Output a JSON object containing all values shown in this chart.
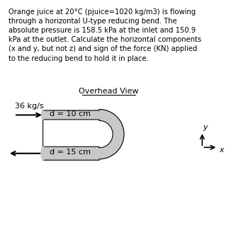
{
  "title_text": "Overhead View",
  "problem_text": "Orange juice at 20°C (pjuice=1020 kg/m3) is flowing\nthrough a horizontal U-type reducing bend. The\nabsolute pressure is 158.5 kPa at the inlet and 150.9\nkPa at the outlet. Calculate the horizontal components\n(x and y, but not z) and sign of the force (KN) applied\nto the reducing bend to hold it in place.",
  "flow_label": "36 kg/s",
  "inlet_label": "d = 10 cm",
  "outlet_label": "d = 15 cm",
  "bg_color": "#ffffff",
  "pipe_color": "#000000",
  "arrow_color": "#000000",
  "text_color": "#000000",
  "pipe_fill_color": "#c8c8c8",
  "axis_label_x": "x",
  "axis_label_y": "y"
}
